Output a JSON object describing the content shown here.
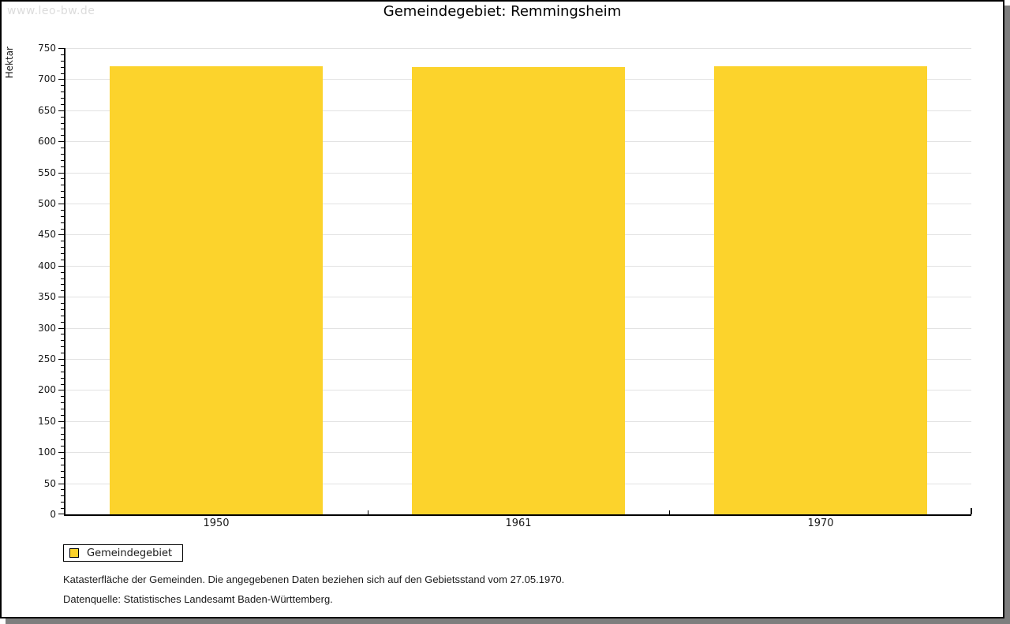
{
  "watermark": "www.leo-bw.de",
  "chart_data": {
    "type": "bar",
    "title": "Gemeindegebiet: Remmingsheim",
    "categories": [
      "1950",
      "1961",
      "1970"
    ],
    "series": [
      {
        "name": "Gemeindegebiet",
        "values": [
          721,
          719,
          721
        ]
      }
    ],
    "xlabel": "",
    "ylabel": "Hektar",
    "ylim": [
      0,
      750
    ],
    "y_major_step": 50,
    "y_minor_step": 10,
    "y_tick_labels": [
      "0",
      "50",
      "100",
      "150",
      "200",
      "250",
      "300",
      "350",
      "400",
      "450",
      "500",
      "550",
      "600",
      "650",
      "700",
      "750"
    ],
    "grid": "horizontal-major",
    "bar_color": "#FCD32C",
    "grid_color": "#E2E2E2",
    "legend_position": "bottom-left"
  },
  "legend": {
    "items": [
      {
        "label": "Gemeindegebiet",
        "color": "#FCD32C"
      }
    ]
  },
  "footnotes": [
    "Katasterfläche der Gemeinden. Die angegebenen Daten beziehen sich auf den Gebietsstand vom 27.05.1970.",
    "Datenquelle: Statistisches Landesamt Baden-Württemberg."
  ]
}
